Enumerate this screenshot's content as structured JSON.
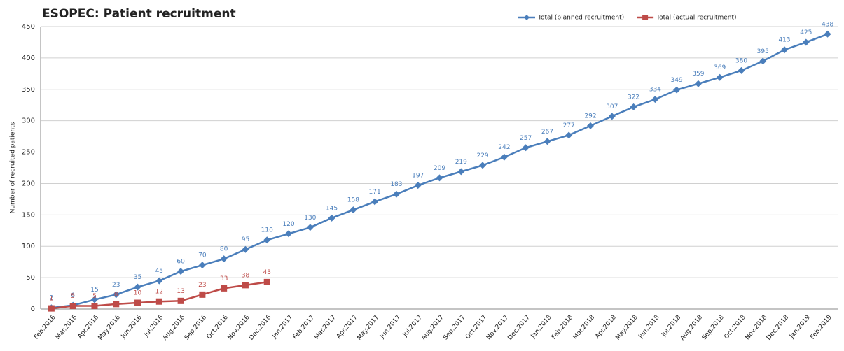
{
  "chart_data": {
    "type": "line",
    "title": "ESOPEC: Patient recruitment",
    "y_label": "Number of recruited patients",
    "categories": [
      "Feb.2016",
      "Mar.2016",
      "Apr.2016",
      "May.2016",
      "Jun.2016",
      "Jul.2016",
      "Aug.2016",
      "Sep.2016",
      "Oct.2016",
      "Nov.2016",
      "Dec.2016",
      "Jan.2017",
      "Feb.2017",
      "Mar.2017",
      "Apr.2017",
      "May.2017",
      "Jun.2017",
      "Jul.2017",
      "Aug.2017",
      "Sep.2017",
      "Oct.2017",
      "Nov.2017",
      "Dec.2017",
      "Jan.2018",
      "Feb.2018",
      "Mar.2018",
      "Apr.2018",
      "May.2018",
      "Jun.2018",
      "Jul.2018",
      "Aug.2018",
      "Sep.2018",
      "Oct.2018",
      "Nov.2018",
      "Dec.2018",
      "Jan.2019",
      "Feb.2019"
    ],
    "series": [
      {
        "name": "Total (planned recruitment)",
        "color": "#4a7ebb",
        "marker": "diamond",
        "values": [
          2,
          6,
          15,
          23,
          35,
          45,
          60,
          70,
          80,
          95,
          110,
          120,
          130,
          145,
          158,
          171,
          183,
          197,
          209,
          219,
          229,
          242,
          257,
          267,
          277,
          292,
          307,
          322,
          334,
          349,
          359,
          369,
          380,
          395,
          413,
          425,
          438
        ]
      },
      {
        "name": "Total (actual recruitment)",
        "color": "#be4b48",
        "marker": "square",
        "values": [
          1,
          5,
          5,
          8,
          10,
          12,
          13,
          23,
          33,
          38,
          43,
          null,
          null,
          null,
          null,
          null,
          null,
          null,
          null,
          null,
          null,
          null,
          null,
          null,
          null,
          null,
          null,
          null,
          null,
          null,
          null,
          null,
          null,
          null,
          null,
          null,
          null
        ]
      }
    ],
    "ylim": [
      0,
      450
    ],
    "yticks": [
      0,
      50,
      100,
      150,
      200,
      250,
      300,
      350,
      400,
      450
    ],
    "grid": true,
    "legend": "top-right"
  }
}
